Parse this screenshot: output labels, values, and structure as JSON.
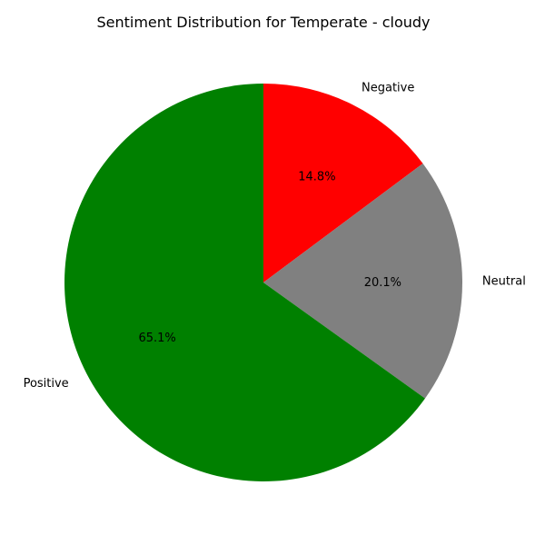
{
  "chart_data": {
    "type": "pie",
    "title": "Sentiment Distribution for Temperate - cloudy",
    "slices": [
      {
        "label": "Negative",
        "value": 14.8,
        "pct_label": "14.8%",
        "color": "#ff0000"
      },
      {
        "label": "Neutral",
        "value": 20.1,
        "pct_label": "20.1%",
        "color": "#808080"
      },
      {
        "label": "Positive",
        "value": 65.1,
        "pct_label": "65.1%",
        "color": "#008000"
      }
    ],
    "start_angle": 90,
    "direction": "clockwise",
    "legend": "none"
  }
}
